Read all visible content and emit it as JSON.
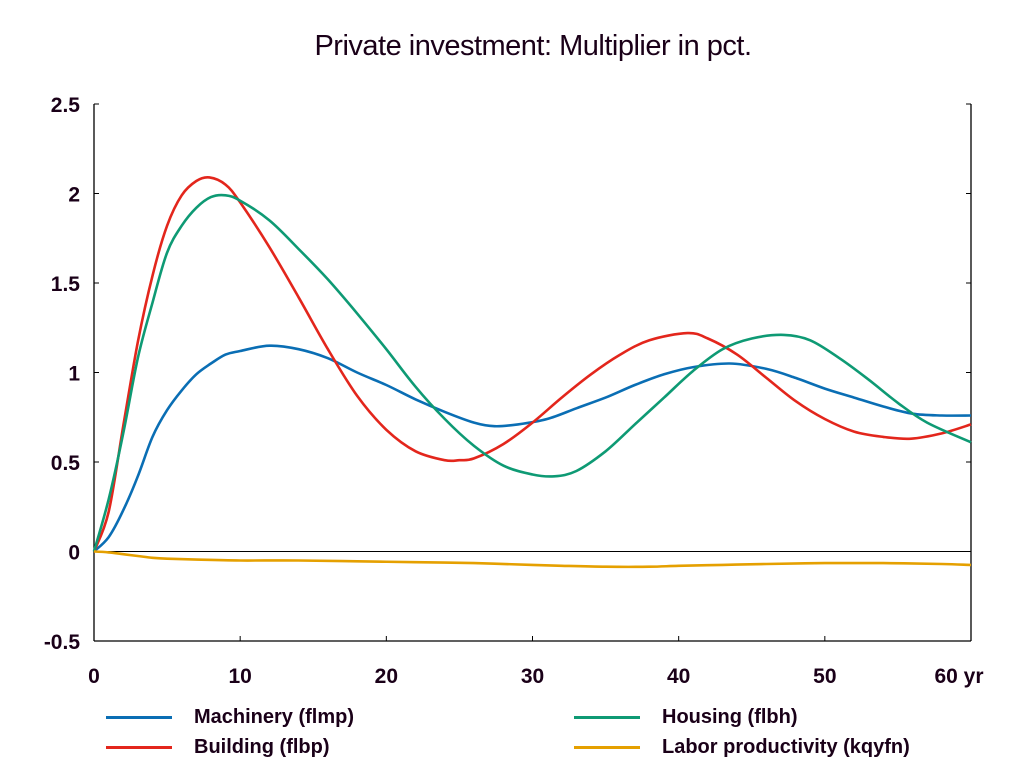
{
  "chart_data": {
    "type": "line",
    "title": "Private investment: Multiplier in pct.",
    "xlabel": "",
    "ylabel": "",
    "x_unit_suffix": "yr",
    "xlim": [
      0,
      60
    ],
    "ylim": [
      -0.5,
      2.5
    ],
    "xticks": [
      0,
      10,
      20,
      30,
      40,
      50,
      60
    ],
    "xtick_labels": [
      "0",
      "10",
      "20",
      "30",
      "40",
      "50",
      "60 yr"
    ],
    "yticks": [
      -0.5,
      0,
      0.5,
      1,
      1.5,
      2,
      2.5
    ],
    "ytick_labels": [
      "-0.5",
      "0",
      "0.5",
      "1",
      "1.5",
      "2",
      "2.5"
    ],
    "zero_line": true,
    "grid": false,
    "legend_position": "bottom",
    "series": [
      {
        "name": "Machinery (flmp)",
        "color": "#0a6eb4",
        "x": [
          0,
          1,
          2,
          3,
          4,
          5,
          6,
          7,
          8,
          9,
          10,
          12,
          14,
          16,
          18,
          20,
          22,
          24,
          26,
          27.4,
          29,
          31,
          33,
          35,
          37,
          39,
          41,
          43.5,
          46,
          48,
          50,
          52,
          54,
          56,
          58,
          60
        ],
        "values": [
          0,
          0.08,
          0.23,
          0.42,
          0.64,
          0.79,
          0.9,
          0.99,
          1.05,
          1.1,
          1.12,
          1.15,
          1.13,
          1.08,
          1.0,
          0.93,
          0.85,
          0.78,
          0.72,
          0.7,
          0.71,
          0.74,
          0.8,
          0.86,
          0.93,
          0.99,
          1.03,
          1.05,
          1.02,
          0.97,
          0.91,
          0.86,
          0.81,
          0.77,
          0.76,
          0.76
        ]
      },
      {
        "name": "Building (flbp)",
        "color": "#e3261c",
        "x": [
          0,
          1,
          2,
          3,
          4,
          5,
          6,
          7,
          7.9,
          9,
          10,
          12,
          14,
          16,
          18,
          20,
          22,
          24,
          25,
          26,
          28,
          30,
          32,
          34,
          36,
          38,
          40.6,
          42,
          44,
          46,
          48,
          50,
          52,
          54,
          55.9,
          58,
          60
        ],
        "values": [
          0,
          0.22,
          0.7,
          1.17,
          1.54,
          1.82,
          1.99,
          2.07,
          2.09,
          2.05,
          1.95,
          1.7,
          1.42,
          1.13,
          0.87,
          0.68,
          0.56,
          0.51,
          0.51,
          0.52,
          0.6,
          0.72,
          0.86,
          0.99,
          1.1,
          1.18,
          1.22,
          1.19,
          1.1,
          0.97,
          0.84,
          0.74,
          0.67,
          0.64,
          0.63,
          0.66,
          0.71
        ]
      },
      {
        "name": "Housing (flbh)",
        "color": "#0e9a74",
        "x": [
          0,
          1,
          2,
          3,
          4,
          5,
          6,
          7,
          8,
          9,
          10,
          12,
          14,
          16,
          18,
          20,
          22,
          24,
          26,
          28,
          30,
          31.5,
          33,
          35,
          37,
          39,
          41,
          43,
          45,
          47.2,
          49,
          51,
          53,
          55,
          57,
          60
        ],
        "values": [
          0,
          0.29,
          0.66,
          1.08,
          1.39,
          1.67,
          1.82,
          1.92,
          1.98,
          1.99,
          1.96,
          1.85,
          1.69,
          1.52,
          1.33,
          1.13,
          0.92,
          0.74,
          0.59,
          0.48,
          0.43,
          0.42,
          0.45,
          0.56,
          0.71,
          0.86,
          1.01,
          1.13,
          1.19,
          1.21,
          1.18,
          1.08,
          0.96,
          0.83,
          0.72,
          0.61
        ]
      },
      {
        "name": "Labor productivity (kqyfn)",
        "color": "#e5a000",
        "x": [
          0,
          1,
          2,
          3,
          4,
          5,
          7,
          10,
          14,
          18,
          22,
          26,
          30,
          32,
          35,
          38,
          40,
          43,
          46,
          50,
          54,
          58,
          60
        ],
        "values": [
          0,
          -0.005,
          -0.015,
          -0.025,
          -0.035,
          -0.04,
          -0.045,
          -0.05,
          -0.05,
          -0.055,
          -0.06,
          -0.065,
          -0.075,
          -0.08,
          -0.085,
          -0.085,
          -0.08,
          -0.075,
          -0.07,
          -0.065,
          -0.065,
          -0.07,
          -0.075
        ]
      }
    ]
  },
  "legend": {
    "items": [
      {
        "label": "Machinery (flmp)",
        "color": "#0a6eb4"
      },
      {
        "label": "Building (flbp)",
        "color": "#e3261c"
      },
      {
        "label": "Housing (flbh)",
        "color": "#0e9a74"
      },
      {
        "label": "Labor productivity (kqyfn)",
        "color": "#e5a000"
      }
    ]
  }
}
